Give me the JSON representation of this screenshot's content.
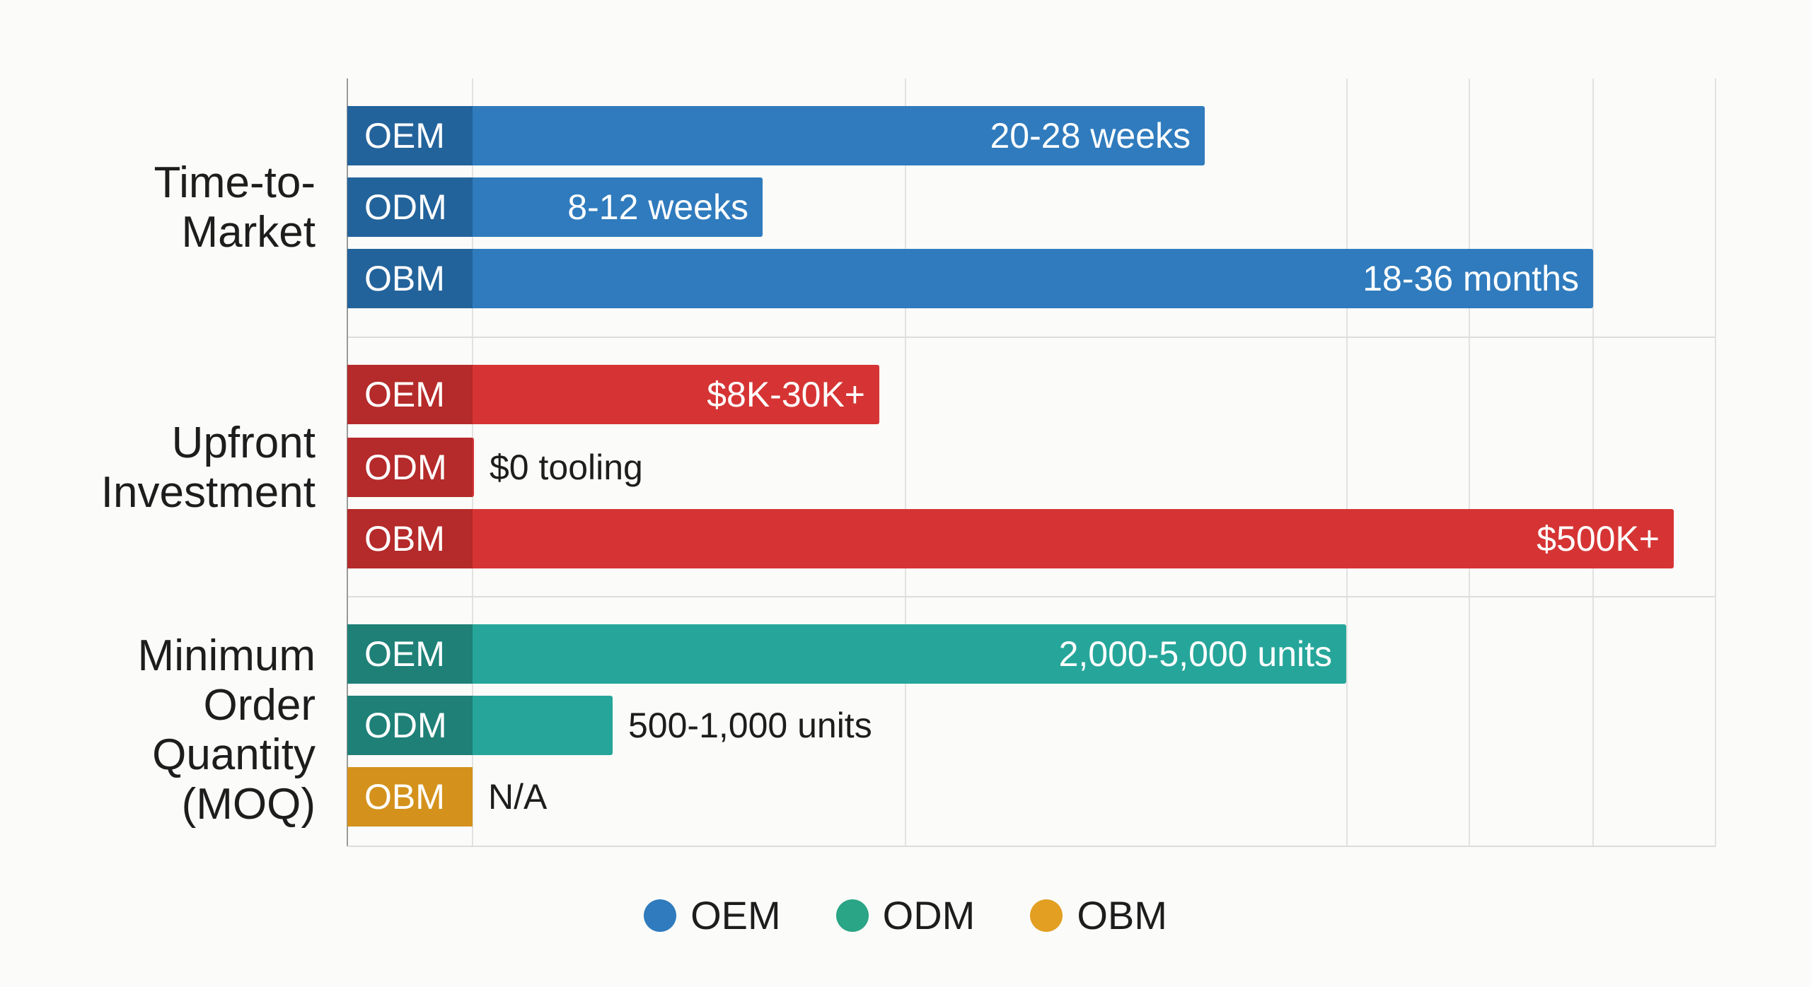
{
  "chart_data": {
    "type": "bar",
    "orientation": "horizontal",
    "grid": true,
    "legend_position": "bottom",
    "legend": [
      {
        "label": "OEM",
        "color": "#2f7bbd"
      },
      {
        "label": "ODM",
        "color": "#2aa585"
      },
      {
        "label": "OBM",
        "color": "#e39f22"
      }
    ],
    "groups": [
      {
        "category": "Time-to-\nMarket",
        "color": "#2f7bbd",
        "badge_color": "#23639b",
        "bars": [
          {
            "series": "OEM",
            "value_label": "20-28 weeks"
          },
          {
            "series": "ODM",
            "value_label": "8-12 weeks"
          },
          {
            "series": "OBM",
            "value_label": "18-36 months"
          }
        ]
      },
      {
        "category": "Upfront\nInvestment",
        "color": "#d63434",
        "badge_color": "#b52a2a",
        "bars": [
          {
            "series": "OEM",
            "value_label": "$8K-30K+"
          },
          {
            "series": "ODM",
            "value_label": "$0 tooling"
          },
          {
            "series": "OBM",
            "value_label": "$500K+"
          }
        ]
      },
      {
        "category": "Minimum\nOrder\nQuantity\n(MOQ)",
        "color": "#26a69a",
        "badge_color": "#1e8077",
        "bars": [
          {
            "series": "OEM",
            "value_label": "2,000-5,000 units"
          },
          {
            "series": "ODM",
            "value_label": "500-1,000 units"
          },
          {
            "series": "OBM",
            "value_label": "N/A",
            "color": "#d9961e",
            "badge_color": "#d4921c"
          }
        ]
      }
    ]
  }
}
